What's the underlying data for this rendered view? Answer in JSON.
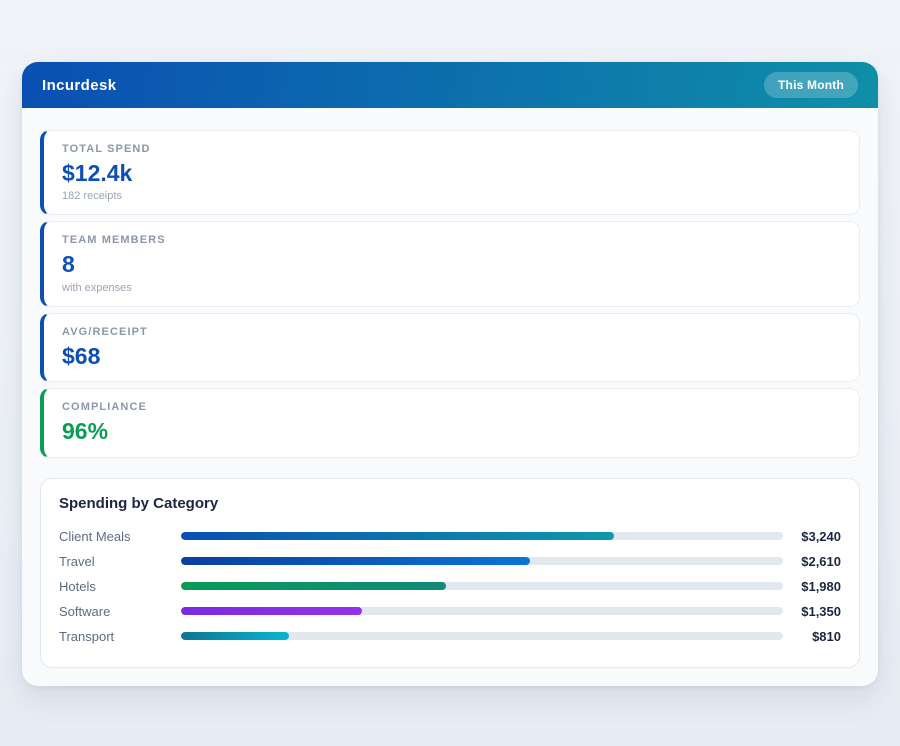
{
  "header": {
    "app_title": "Incurdesk",
    "period_badge": "This Month",
    "gradient_from": "#0a4fb2",
    "gradient_to": "#0f8fa8"
  },
  "stats": {
    "items": [
      {
        "label": "TOTAL SPEND",
        "value": "$12.4k",
        "sub": "182 receipts",
        "accent": "#0a4fb2",
        "value_color": "#0d4fb2"
      },
      {
        "label": "TEAM MEMBERS",
        "value": "8",
        "sub": "with expenses",
        "accent": "#0a4fb2",
        "value_color": "#0d4fb2"
      },
      {
        "label": "AVG/RECEIPT",
        "value": "$68",
        "sub": "",
        "accent": "#0a4fb2",
        "value_color": "#0d4fb2"
      },
      {
        "label": "COMPLIANCE",
        "value": "96%",
        "sub": "",
        "accent": "#0a9d58",
        "value_color": "#0a9d58"
      }
    ]
  },
  "chart_data": {
    "type": "bar",
    "orientation": "horizontal",
    "title": "Spending by Category",
    "categories": [
      "Client Meals",
      "Travel",
      "Hotels",
      "Software",
      "Transport"
    ],
    "values": [
      3240,
      2610,
      1980,
      1350,
      810
    ],
    "value_labels": [
      "$3,240",
      "$2,610",
      "$1,980",
      "$1,350",
      "$810"
    ],
    "axis_max": 4500,
    "grid": false,
    "legend": false,
    "track_color": "#e2e8f0",
    "bar_gradients": [
      [
        "#0a4fb2",
        "#0f98a8"
      ],
      [
        "#0a3f9e",
        "#0b74d6"
      ],
      [
        "#089a55",
        "#14897c"
      ],
      [
        "#7a2be0",
        "#9333ea"
      ],
      [
        "#0e7490",
        "#08b5d4"
      ]
    ]
  }
}
